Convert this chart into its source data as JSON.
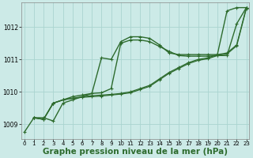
{
  "background_color": "#cceae7",
  "grid_color": "#aad4d0",
  "line_color": "#2d6b2d",
  "xlabel": "Graphe pression niveau de la mer (hPa)",
  "xlabel_fontsize": 7.5,
  "ylim": [
    1008.55,
    1012.75
  ],
  "xlim": [
    -0.3,
    23.3
  ],
  "yticks": [
    1009,
    1010,
    1011,
    1012
  ],
  "xticks": [
    0,
    1,
    2,
    3,
    4,
    5,
    6,
    7,
    8,
    9,
    10,
    11,
    12,
    13,
    14,
    15,
    16,
    17,
    18,
    19,
    20,
    21,
    22,
    23
  ],
  "series": [
    {
      "x": [
        0,
        1,
        2,
        3,
        4,
        5,
        6,
        7,
        8,
        9,
        10,
        11,
        12,
        13,
        14,
        15,
        16,
        17,
        18,
        19,
        20,
        21,
        22,
        23
      ],
      "y": [
        1008.75,
        1009.2,
        1009.2,
        1009.1,
        1009.65,
        1009.75,
        1009.85,
        1009.95,
        1011.05,
        1011.0,
        1011.55,
        1011.7,
        1011.7,
        1011.65,
        1011.45,
        1011.2,
        1011.15,
        1011.15,
        1011.15,
        1011.15,
        1011.15,
        1012.5,
        1012.6,
        1012.6
      ],
      "lw": 1.0,
      "marker": "+"
    },
    {
      "x": [
        1,
        2,
        3,
        4,
        5,
        6,
        7,
        8,
        9,
        10,
        11,
        12,
        13,
        14,
        15,
        16,
        17,
        18,
        19,
        20,
        21,
        22,
        23
      ],
      "y": [
        1009.2,
        1009.15,
        1009.65,
        1009.75,
        1009.85,
        1009.9,
        1009.95,
        1009.97,
        1010.1,
        1011.5,
        1011.6,
        1011.6,
        1011.55,
        1011.4,
        1011.25,
        1011.12,
        1011.1,
        1011.1,
        1011.1,
        1011.12,
        1011.12,
        1012.1,
        1012.6
      ],
      "lw": 1.0,
      "marker": "+"
    },
    {
      "x": [
        1,
        2,
        3,
        4,
        5,
        6,
        7,
        8,
        9,
        10,
        11,
        12,
        13,
        14,
        15,
        16,
        17,
        18,
        19,
        20,
        21,
        22,
        23
      ],
      "y": [
        1009.2,
        1009.15,
        1009.65,
        1009.75,
        1009.8,
        1009.85,
        1009.88,
        1009.9,
        1009.92,
        1009.95,
        1010.0,
        1010.1,
        1010.2,
        1010.4,
        1010.6,
        1010.75,
        1010.9,
        1011.0,
        1011.05,
        1011.15,
        1011.2,
        1011.45,
        1012.6
      ],
      "lw": 0.9,
      "marker": "+"
    },
    {
      "x": [
        1,
        2,
        3,
        4,
        5,
        6,
        7,
        8,
        9,
        10,
        11,
        12,
        13,
        14,
        15,
        16,
        17,
        18,
        19,
        20,
        21,
        22,
        23
      ],
      "y": [
        1009.2,
        1009.15,
        1009.65,
        1009.75,
        1009.8,
        1009.83,
        1009.85,
        1009.87,
        1009.9,
        1009.93,
        1009.97,
        1010.07,
        1010.17,
        1010.37,
        1010.57,
        1010.72,
        1010.87,
        1010.97,
        1011.02,
        1011.12,
        1011.17,
        1011.42,
        1012.57
      ],
      "lw": 0.9,
      "marker": "+"
    }
  ]
}
